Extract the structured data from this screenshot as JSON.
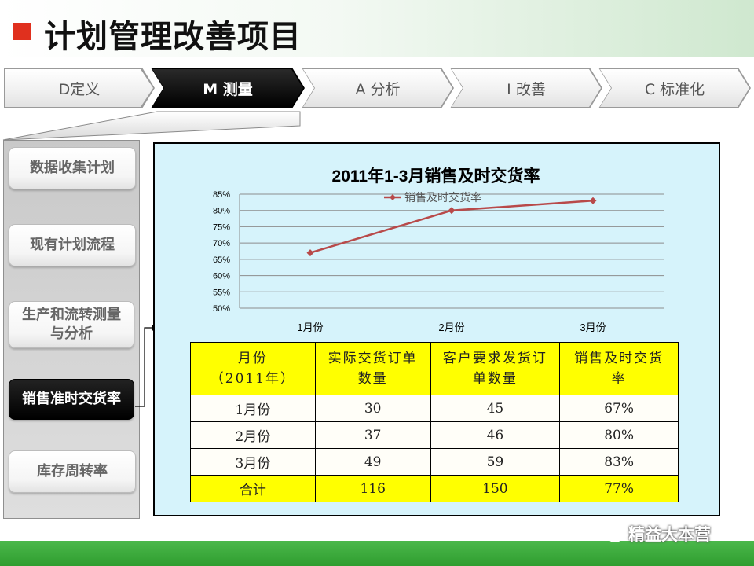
{
  "page": {
    "title": "计划管理改善项目"
  },
  "steps": [
    {
      "label": "D定义",
      "active": false
    },
    {
      "label": "M 测量",
      "active": true
    },
    {
      "label": "A 分析",
      "active": false
    },
    {
      "label": "I 改善",
      "active": false
    },
    {
      "label": "C 标准化",
      "active": false
    }
  ],
  "sidebar": {
    "items": [
      {
        "label": "数据收集计划"
      },
      {
        "label": "现有计划流程"
      },
      {
        "label": "生产和流转测量与分析"
      },
      {
        "label": "销售准时交货率"
      },
      {
        "label": "库存周转率"
      }
    ]
  },
  "chart_data": {
    "type": "line",
    "title": "2011年1-3月销售及时交货率",
    "categories": [
      "1月份",
      "2月份",
      "3月份"
    ],
    "series": [
      {
        "name": "销售及时交货率",
        "values": [
          67,
          80,
          83
        ]
      }
    ],
    "ylim": [
      50,
      85
    ],
    "yticks": [
      "50%",
      "55%",
      "60%",
      "65%",
      "70%",
      "75%",
      "80%",
      "85%"
    ],
    "grid": true,
    "legend": "top",
    "series_color": "#b84a4a"
  },
  "table": {
    "headers": [
      "月份（2011年）",
      "实际交货订单数量",
      "客户要求发货订单数量",
      "销售及时交货率"
    ],
    "header_lines": [
      [
        "月份",
        "（2011年）"
      ],
      [
        "实际交货订单",
        "数量"
      ],
      [
        "客户要求发货订",
        "单数量"
      ],
      [
        "销售及时交货",
        "率"
      ]
    ],
    "rows": [
      [
        "1月份",
        "30",
        "45",
        "67%"
      ],
      [
        "2月份",
        "37",
        "46",
        "80%"
      ],
      [
        "3月份",
        "49",
        "59",
        "83%"
      ]
    ],
    "total": [
      "合计",
      "116",
      "150",
      "77%"
    ]
  },
  "watermark": {
    "text": "精益大本营",
    "icon": "wechat-icon"
  },
  "colors": {
    "accent": "#e0301e",
    "footer_green": "#3aaa3a",
    "content_bg": "#d6f3fb",
    "highlight": "#ffff00"
  }
}
